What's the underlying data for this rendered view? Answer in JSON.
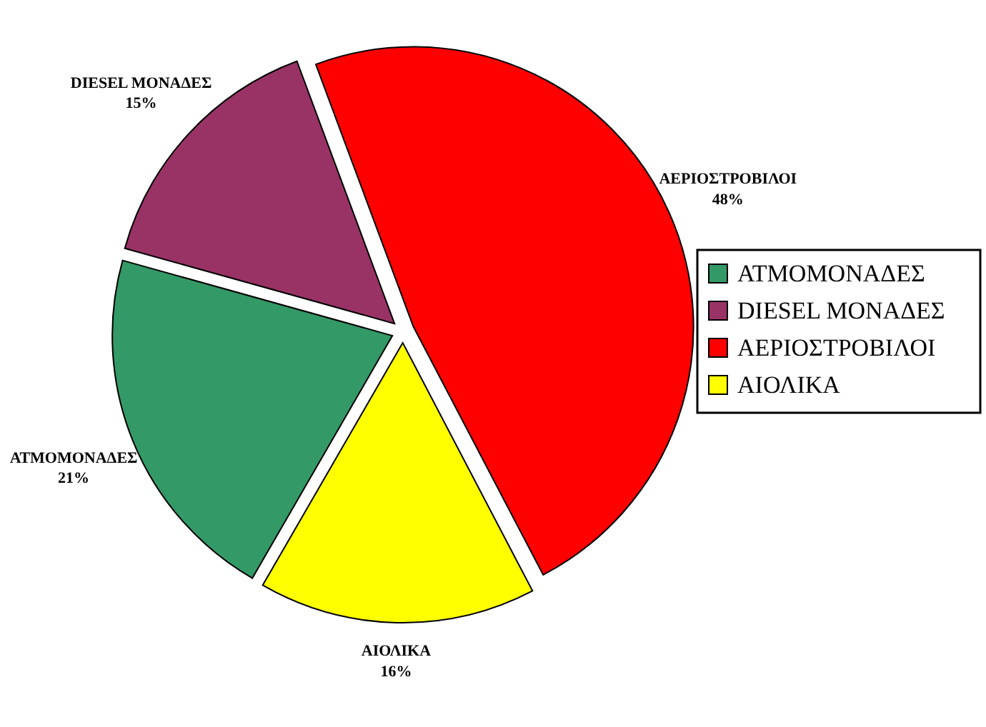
{
  "chart_data": {
    "type": "pie",
    "categories": [
      "ΑΤΜΟΜΟΝΑΔΕΣ",
      "DIESEL ΜΟΝΑΔΕΣ",
      "ΑΕΡΙΟΣΤΡΟΒΙΛΟΙ",
      "ΑΙΟΛΙΚΑ"
    ],
    "values": [
      21,
      15,
      48,
      16
    ],
    "colors": [
      "#339966",
      "#993366",
      "#ff0000",
      "#ffff00"
    ],
    "value_labels": [
      "21%",
      "15%",
      "48%",
      "16%"
    ],
    "legend": "right"
  }
}
